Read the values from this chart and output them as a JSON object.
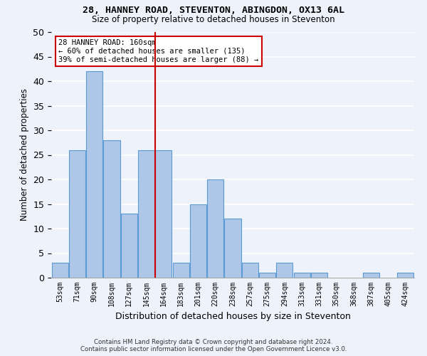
{
  "title1": "28, HANNEY ROAD, STEVENTON, ABINGDON, OX13 6AL",
  "title2": "Size of property relative to detached houses in Steventon",
  "xlabel": "Distribution of detached houses by size in Steventon",
  "ylabel": "Number of detached properties",
  "categories": [
    "53sqm",
    "71sqm",
    "90sqm",
    "108sqm",
    "127sqm",
    "145sqm",
    "164sqm",
    "183sqm",
    "201sqm",
    "220sqm",
    "238sqm",
    "257sqm",
    "275sqm",
    "294sqm",
    "313sqm",
    "331sqm",
    "350sqm",
    "368sqm",
    "387sqm",
    "405sqm",
    "424sqm"
  ],
  "values": [
    3,
    26,
    42,
    28,
    13,
    26,
    26,
    3,
    15,
    20,
    12,
    3,
    1,
    3,
    1,
    1,
    0,
    0,
    1,
    0,
    1
  ],
  "bar_color": "#aec6e8",
  "bar_edge_color": "#5b9bd5",
  "ref_line_label": "28 HANNEY ROAD: 160sqm",
  "annotation_line1": "← 60% of detached houses are smaller (135)",
  "annotation_line2": "39% of semi-detached houses are larger (88) →",
  "annotation_box_color": "#ffffff",
  "annotation_box_edge": "#cc0000",
  "ref_line_color": "#cc0000",
  "ylim": [
    0,
    50
  ],
  "yticks": [
    0,
    5,
    10,
    15,
    20,
    25,
    30,
    35,
    40,
    45,
    50
  ],
  "background_color": "#eef2fa",
  "grid_color": "#ffffff",
  "footer1": "Contains HM Land Registry data © Crown copyright and database right 2024.",
  "footer2": "Contains public sector information licensed under the Open Government Licence v3.0."
}
